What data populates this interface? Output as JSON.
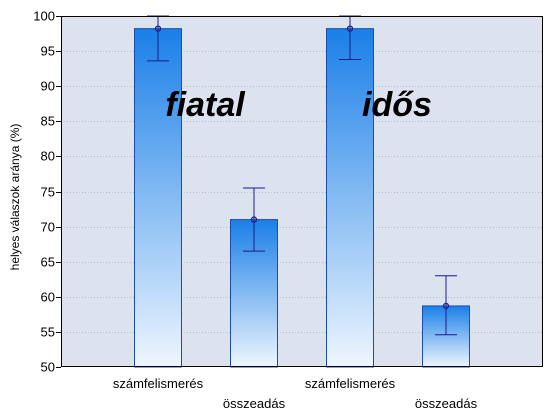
{
  "chart_data": {
    "type": "bar",
    "ylabel": "helyes válaszok aránya (%)",
    "ylim": [
      50,
      100
    ],
    "yticks": [
      50,
      55,
      60,
      65,
      70,
      75,
      80,
      85,
      90,
      95,
      100
    ],
    "grid": true,
    "categories": [
      "számfelismerés",
      "összeadás",
      "számfelismerés",
      "összeadás"
    ],
    "values": [
      98.2,
      71.0,
      98.2,
      58.7
    ],
    "error_low": [
      93.6,
      66.5,
      93.8,
      54.6
    ],
    "error_high": [
      100,
      75.5,
      100,
      63.0
    ],
    "group_labels": [
      "fiatal",
      "idős"
    ],
    "colors": {
      "plot_background": "#dce3ef",
      "bar_top": "#1a7fe8",
      "bar_bottom": "#eef6fe",
      "bar_border": "#1a4fa8",
      "error_bar": "#1b1b8c",
      "grid": "#b4bccb"
    }
  }
}
